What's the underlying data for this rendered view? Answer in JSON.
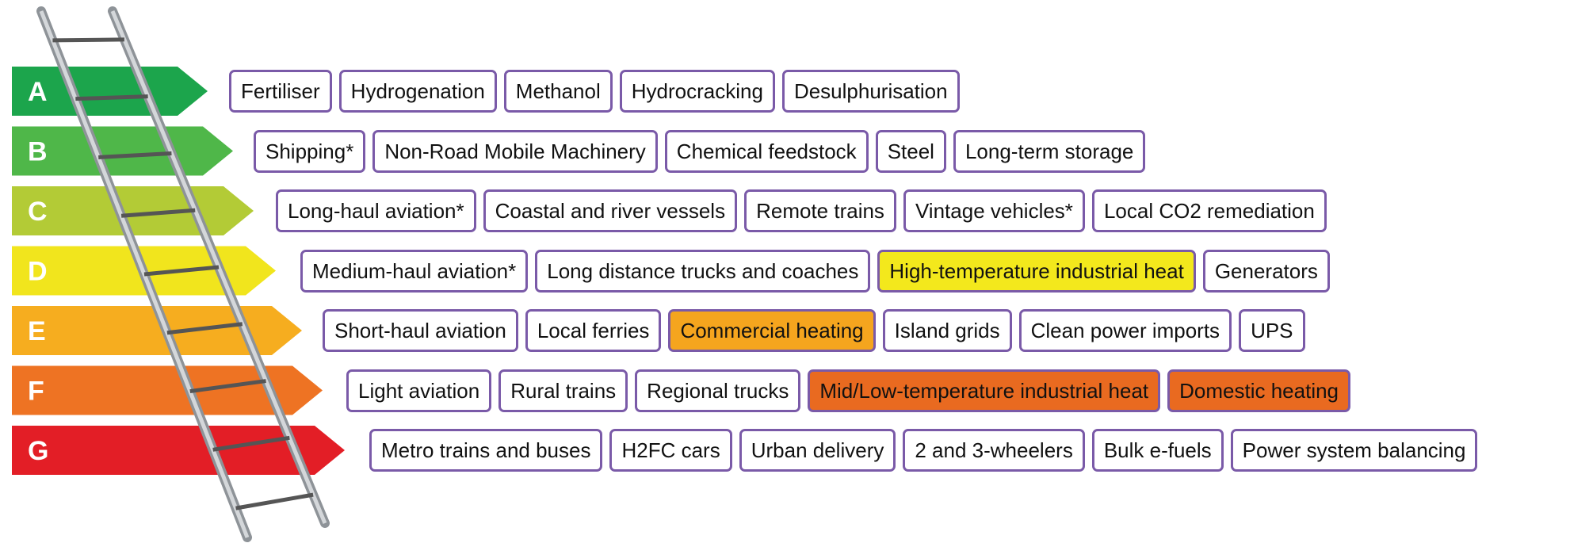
{
  "rows": [
    {
      "label": "A",
      "color": "#1ca54c",
      "items": [
        {
          "text": "Fertiliser"
        },
        {
          "text": "Hydrogenation"
        },
        {
          "text": "Methanol"
        },
        {
          "text": "Hydrocracking"
        },
        {
          "text": "Desulphurisation"
        }
      ]
    },
    {
      "label": "B",
      "color": "#4fb749",
      "items": [
        {
          "text": "Shipping*"
        },
        {
          "text": "Non-Road Mobile Machinery"
        },
        {
          "text": "Chemical feedstock"
        },
        {
          "text": "Steel"
        },
        {
          "text": "Long-term storage"
        }
      ]
    },
    {
      "label": "C",
      "color": "#b3cb36",
      "items": [
        {
          "text": "Long-haul aviation*"
        },
        {
          "text": "Coastal and river vessels"
        },
        {
          "text": "Remote trains"
        },
        {
          "text": "Vintage vehicles*"
        },
        {
          "text": "Local CO2 remediation"
        }
      ]
    },
    {
      "label": "D",
      "color": "#f1e51d",
      "items": [
        {
          "text": "Medium-haul aviation*"
        },
        {
          "text": "Long distance trucks and coaches"
        },
        {
          "text": "High-temperature industrial heat",
          "fill": "#f3e81c"
        },
        {
          "text": "Generators"
        }
      ]
    },
    {
      "label": "E",
      "color": "#f6ad1f",
      "items": [
        {
          "text": "Short-haul aviation"
        },
        {
          "text": "Local ferries"
        },
        {
          "text": "Commercial heating",
          "fill": "#f5a51e"
        },
        {
          "text": "Island grids"
        },
        {
          "text": "Clean power imports"
        },
        {
          "text": "UPS"
        }
      ]
    },
    {
      "label": "F",
      "color": "#ee7323",
      "items": [
        {
          "text": "Light aviation"
        },
        {
          "text": "Rural trains"
        },
        {
          "text": "Regional trucks"
        },
        {
          "text": "Mid/Low-temperature industrial heat",
          "fill": "#e96a20"
        },
        {
          "text": "Domestic heating",
          "fill": "#e96a20"
        }
      ]
    },
    {
      "label": "G",
      "color": "#e31e26",
      "items": [
        {
          "text": "Metro trains and buses"
        },
        {
          "text": "H2FC cars"
        },
        {
          "text": "Urban delivery"
        },
        {
          "text": "2 and 3-wheelers"
        },
        {
          "text": "Bulk e-fuels"
        },
        {
          "text": "Power system balancing"
        }
      ]
    }
  ]
}
